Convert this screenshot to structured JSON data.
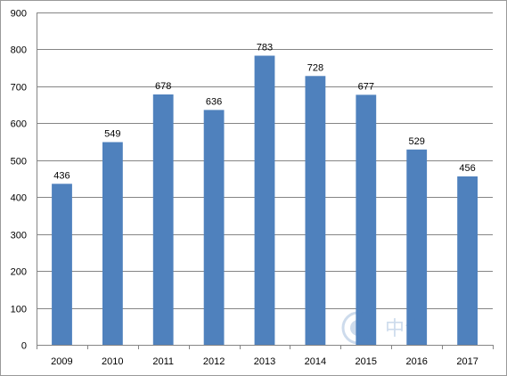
{
  "chart_data": {
    "type": "bar",
    "title": "",
    "xlabel": "",
    "ylabel": "",
    "categories": [
      "2009",
      "2010",
      "2011",
      "2012",
      "2013",
      "2014",
      "2015",
      "2016",
      "2017"
    ],
    "values": [
      436,
      549,
      678,
      636,
      783,
      728,
      677,
      529,
      456
    ],
    "data_labels": [
      "436",
      "549",
      "678",
      "636",
      "783",
      "728",
      "677",
      "529",
      "456"
    ],
    "ylim": [
      0,
      900
    ],
    "yticks": [
      "0",
      "100",
      "200",
      "300",
      "400",
      "500",
      "600",
      "700",
      "800",
      "900"
    ],
    "grid": true,
    "legend": "none",
    "bar_color": "#4f81bd",
    "gridline_color": "#858585"
  },
  "watermark": {
    "icon": "logo-watermark-icon",
    "text": "中青"
  }
}
